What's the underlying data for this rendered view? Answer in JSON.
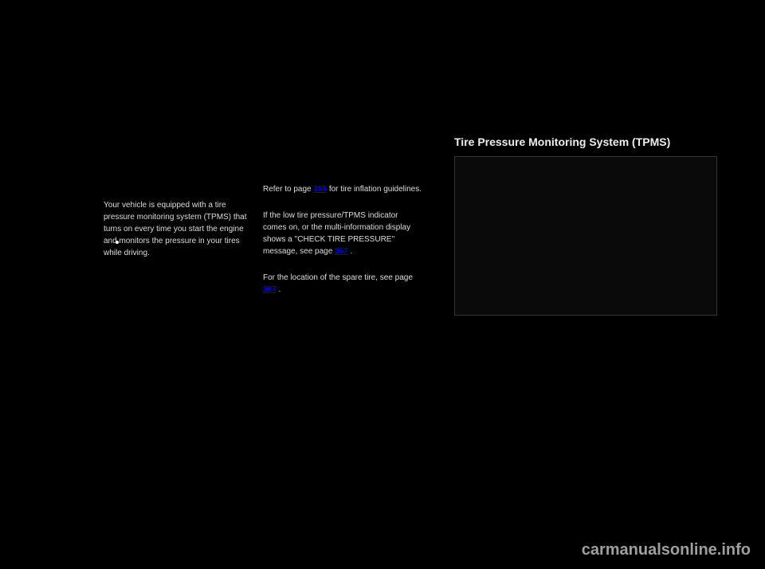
{
  "left_column": {
    "text1": "Your vehicle is equipped with a tire pressure monitoring system (TPMS) that turns on every time you start the engine and monitors the pressure in your tires while driving."
  },
  "mid_column": {
    "para1_prefix": "Refer to page ",
    "para1_link": "355",
    "para1_suffix": " for tire inflation guidelines.",
    "para2_prefix": "If the low tire pressure/TPMS indicator comes on, or the multi-information display shows a ''CHECK TIRE PRESSURE'' message, see page ",
    "para2_link": "357",
    "para2_suffix": ".",
    "para3_prefix": "For the location of the spare tire, see page ",
    "para3_link": "387",
    "para3_suffix": "."
  },
  "right_column": {
    "heading": "Tire Pressure Monitoring System (TPMS)"
  },
  "watermark": "carmanualsonline.info",
  "colors": {
    "background": "#000000",
    "text": "#ffffff",
    "link": "#0000ff",
    "watermark": "#bbbbbb"
  }
}
